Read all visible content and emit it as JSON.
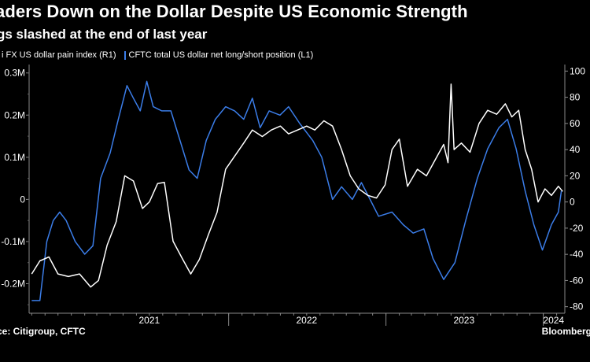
{
  "header": {
    "title": "aders Down on the Dollar Despite US Economic Strength",
    "subtitle": "gs slashed at the end of last year"
  },
  "legend": {
    "items": [
      {
        "label": "i FX US dollar pain index (R1)",
        "color": "#ffffff"
      },
      {
        "label": "CFTC total US dollar net long/short position (L1)",
        "color": "#3b7de8"
      }
    ]
  },
  "footer": {
    "source": "ce: Citigroup, CFTC",
    "brand": "Bloomberg"
  },
  "chart_data": {
    "type": "line",
    "x_axis": {
      "type": "date",
      "range": [
        "2020-09-25",
        "2024-02-20"
      ],
      "ticks": [
        {
          "label": "2021",
          "at": "2021-07-01"
        },
        {
          "label": "2022",
          "at": "2022-07-01"
        },
        {
          "label": "2023",
          "at": "2023-07-01"
        },
        {
          "label": "2024",
          "at": "2024-01-25"
        }
      ],
      "year_separators": [
        "2022-01-01",
        "2023-01-01",
        "2024-01-01"
      ]
    },
    "y_left": {
      "ylim": [
        -0.27,
        0.32
      ],
      "ticks": [
        {
          "label": "0.3M",
          "value": 0.3
        },
        {
          "label": "0.2M",
          "value": 0.2
        },
        {
          "label": "0.1M",
          "value": 0.1
        },
        {
          "label": "0",
          "value": 0
        },
        {
          "label": "-0.1M",
          "value": -0.1
        },
        {
          "label": "-0.2M",
          "value": -0.2
        }
      ]
    },
    "y_right": {
      "ylim": [
        -85,
        105
      ],
      "ticks": [
        {
          "label": "100",
          "value": 100
        },
        {
          "label": "80",
          "value": 80
        },
        {
          "label": "60",
          "value": 60
        },
        {
          "label": "40",
          "value": 40
        },
        {
          "label": "20",
          "value": 20
        },
        {
          "label": "0",
          "value": 0
        },
        {
          "label": "-20",
          "value": -20
        },
        {
          "label": "-40",
          "value": -40
        },
        {
          "label": "-60",
          "value": -60
        },
        {
          "label": "-80",
          "value": -80
        }
      ]
    },
    "series": [
      {
        "name": "CFTC total US dollar net long/short position (L1)",
        "axis": "left",
        "color": "#3b7de8",
        "points": [
          [
            "2020-10-01",
            -0.24
          ],
          [
            "2020-10-20",
            -0.24
          ],
          [
            "2020-11-05",
            -0.1
          ],
          [
            "2020-11-20",
            -0.05
          ],
          [
            "2020-12-05",
            -0.03
          ],
          [
            "2020-12-20",
            -0.05
          ],
          [
            "2021-01-10",
            -0.1
          ],
          [
            "2021-02-01",
            -0.13
          ],
          [
            "2021-02-20",
            -0.11
          ],
          [
            "2021-03-10",
            0.05
          ],
          [
            "2021-04-01",
            0.11
          ],
          [
            "2021-04-20",
            0.19
          ],
          [
            "2021-05-10",
            0.27
          ],
          [
            "2021-05-25",
            0.24
          ],
          [
            "2021-06-10",
            0.21
          ],
          [
            "2021-06-25",
            0.28
          ],
          [
            "2021-07-10",
            0.22
          ],
          [
            "2021-07-30",
            0.21
          ],
          [
            "2021-08-20",
            0.21
          ],
          [
            "2021-09-10",
            0.14
          ],
          [
            "2021-10-01",
            0.07
          ],
          [
            "2021-10-20",
            0.05
          ],
          [
            "2021-11-10",
            0.14
          ],
          [
            "2021-12-01",
            0.19
          ],
          [
            "2021-12-25",
            0.22
          ],
          [
            "2022-01-15",
            0.21
          ],
          [
            "2022-02-05",
            0.19
          ],
          [
            "2022-02-25",
            0.24
          ],
          [
            "2022-03-15",
            0.17
          ],
          [
            "2022-04-05",
            0.21
          ],
          [
            "2022-04-30",
            0.2
          ],
          [
            "2022-05-20",
            0.22
          ],
          [
            "2022-06-15",
            0.18
          ],
          [
            "2022-07-15",
            0.14
          ],
          [
            "2022-08-05",
            0.1
          ],
          [
            "2022-08-30",
            0.0
          ],
          [
            "2022-09-20",
            0.03
          ],
          [
            "2022-10-15",
            0.0
          ],
          [
            "2022-11-05",
            0.04
          ],
          [
            "2022-11-25",
            0.0
          ],
          [
            "2022-12-15",
            -0.04
          ],
          [
            "2023-01-15",
            -0.03
          ],
          [
            "2023-02-10",
            -0.06
          ],
          [
            "2023-03-05",
            -0.08
          ],
          [
            "2023-03-30",
            -0.07
          ],
          [
            "2023-04-20",
            -0.14
          ],
          [
            "2023-05-15",
            -0.19
          ],
          [
            "2023-06-10",
            -0.15
          ],
          [
            "2023-07-05",
            -0.05
          ],
          [
            "2023-08-01",
            0.05
          ],
          [
            "2023-08-25",
            0.12
          ],
          [
            "2023-09-20",
            0.17
          ],
          [
            "2023-10-10",
            0.19
          ],
          [
            "2023-10-30",
            0.12
          ],
          [
            "2023-11-20",
            0.02
          ],
          [
            "2023-12-10",
            -0.06
          ],
          [
            "2023-12-30",
            -0.12
          ],
          [
            "2024-01-20",
            -0.06
          ],
          [
            "2024-02-05",
            -0.03
          ],
          [
            "2024-02-12",
            0.02
          ]
        ]
      },
      {
        "name": "i FX US dollar pain index (R1)",
        "axis": "right",
        "color": "#ffffff",
        "points": [
          [
            "2020-10-01",
            -55
          ],
          [
            "2020-10-20",
            -45
          ],
          [
            "2020-11-10",
            -42
          ],
          [
            "2020-12-01",
            -55
          ],
          [
            "2020-12-25",
            -57
          ],
          [
            "2021-01-20",
            -55
          ],
          [
            "2021-02-15",
            -65
          ],
          [
            "2021-03-05",
            -60
          ],
          [
            "2021-03-25",
            -33
          ],
          [
            "2021-04-15",
            -15
          ],
          [
            "2021-05-05",
            20
          ],
          [
            "2021-05-25",
            16
          ],
          [
            "2021-06-15",
            -5
          ],
          [
            "2021-07-01",
            0
          ],
          [
            "2021-07-20",
            14
          ],
          [
            "2021-08-05",
            15
          ],
          [
            "2021-08-25",
            -30
          ],
          [
            "2021-09-15",
            -43
          ],
          [
            "2021-10-05",
            -55
          ],
          [
            "2021-10-25",
            -44
          ],
          [
            "2021-11-15",
            -25
          ],
          [
            "2021-12-05",
            -8
          ],
          [
            "2021-12-25",
            25
          ],
          [
            "2022-01-15",
            35
          ],
          [
            "2022-02-05",
            45
          ],
          [
            "2022-02-25",
            55
          ],
          [
            "2022-03-20",
            50
          ],
          [
            "2022-04-10",
            55
          ],
          [
            "2022-05-01",
            58
          ],
          [
            "2022-05-20",
            52
          ],
          [
            "2022-06-10",
            55
          ],
          [
            "2022-07-01",
            58
          ],
          [
            "2022-07-20",
            55
          ],
          [
            "2022-08-10",
            62
          ],
          [
            "2022-08-30",
            58
          ],
          [
            "2022-09-20",
            40
          ],
          [
            "2022-10-10",
            20
          ],
          [
            "2022-10-30",
            10
          ],
          [
            "2022-11-20",
            5
          ],
          [
            "2022-12-10",
            3
          ],
          [
            "2022-12-30",
            13
          ],
          [
            "2023-01-15",
            40
          ],
          [
            "2023-02-01",
            48
          ],
          [
            "2023-02-20",
            12
          ],
          [
            "2023-03-15",
            25
          ],
          [
            "2023-04-05",
            20
          ],
          [
            "2023-04-30",
            35
          ],
          [
            "2023-05-15",
            44
          ],
          [
            "2023-05-25",
            30
          ],
          [
            "2023-06-01",
            90
          ],
          [
            "2023-06-08",
            40
          ],
          [
            "2023-06-25",
            45
          ],
          [
            "2023-07-15",
            38
          ],
          [
            "2023-08-05",
            60
          ],
          [
            "2023-08-25",
            70
          ],
          [
            "2023-09-15",
            67
          ],
          [
            "2023-10-05",
            75
          ],
          [
            "2023-10-20",
            65
          ],
          [
            "2023-11-05",
            70
          ],
          [
            "2023-11-20",
            40
          ],
          [
            "2023-12-05",
            25
          ],
          [
            "2023-12-20",
            0
          ],
          [
            "2024-01-05",
            10
          ],
          [
            "2024-01-20",
            5
          ],
          [
            "2024-02-05",
            12
          ],
          [
            "2024-02-15",
            8
          ]
        ]
      }
    ],
    "grid": false,
    "legend_position": "top-left"
  }
}
